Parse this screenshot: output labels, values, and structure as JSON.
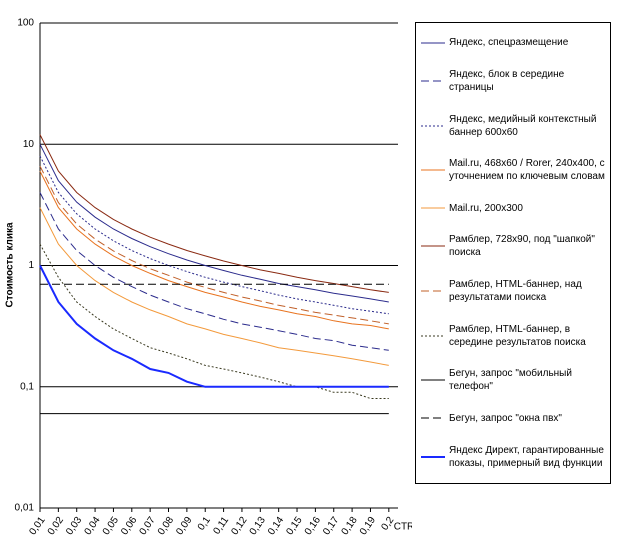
{
  "chart_data": {
    "type": "line",
    "y_label": "Стоимость клика",
    "x_label": "CTR",
    "log_y": true,
    "grid": true,
    "x": [
      0.01,
      0.02,
      0.03,
      0.04,
      0.05,
      0.06,
      0.07,
      0.08,
      0.09,
      0.1,
      0.11,
      0.12,
      0.13,
      0.14,
      0.15,
      0.16,
      0.17,
      0.18,
      0.19,
      0.2
    ],
    "xlim": [
      0.01,
      0.205
    ],
    "xticks": [
      {
        "value": 0.01,
        "label": "0,01"
      },
      {
        "value": 0.02,
        "label": "0,02"
      },
      {
        "value": 0.03,
        "label": "0,03"
      },
      {
        "value": 0.04,
        "label": "0,04"
      },
      {
        "value": 0.05,
        "label": "0,05"
      },
      {
        "value": 0.06,
        "label": "0,06"
      },
      {
        "value": 0.07,
        "label": "0,07"
      },
      {
        "value": 0.08,
        "label": "0,08"
      },
      {
        "value": 0.09,
        "label": "0,09"
      },
      {
        "value": 0.1,
        "label": "0,1"
      },
      {
        "value": 0.11,
        "label": "0,11"
      },
      {
        "value": 0.12,
        "label": "0,12"
      },
      {
        "value": 0.13,
        "label": "0,13"
      },
      {
        "value": 0.14,
        "label": "0,14"
      },
      {
        "value": 0.15,
        "label": "0,15"
      },
      {
        "value": 0.16,
        "label": "0,16"
      },
      {
        "value": 0.17,
        "label": "0,17"
      },
      {
        "value": 0.18,
        "label": "0,18"
      },
      {
        "value": 0.19,
        "label": "0,19"
      },
      {
        "value": 0.2,
        "label": "0,2"
      }
    ],
    "ylim": [
      0.01,
      100
    ],
    "yticks": [
      {
        "value": 0.01,
        "label": "0,01"
      },
      {
        "value": 0.1,
        "label": "0,1"
      },
      1,
      10,
      100
    ],
    "series": [
      {
        "name": "Яндекс, спецразмещение",
        "color": "#2b2b8c",
        "dash": "solid",
        "values": [
          10,
          5,
          3.33,
          2.5,
          2,
          1.67,
          1.43,
          1.25,
          1.11,
          1,
          0.91,
          0.83,
          0.77,
          0.71,
          0.67,
          0.63,
          0.59,
          0.56,
          0.53,
          0.5
        ]
      },
      {
        "name": "Яндекс, блок в середине страницы",
        "color": "#2b2b8c",
        "dash": "dash",
        "values": [
          4,
          2,
          1.33,
          1,
          0.8,
          0.67,
          0.57,
          0.5,
          0.44,
          0.4,
          0.36,
          0.33,
          0.31,
          0.29,
          0.27,
          0.25,
          0.24,
          0.22,
          0.21,
          0.2
        ]
      },
      {
        "name": "Яндекс, медийный контекстный баннер 600x60",
        "color": "#2b2b8c",
        "dash": "dot",
        "values": [
          8,
          4,
          2.67,
          2,
          1.6,
          1.33,
          1.14,
          1,
          0.89,
          0.8,
          0.73,
          0.67,
          0.62,
          0.57,
          0.53,
          0.5,
          0.47,
          0.44,
          0.42,
          0.4
        ]
      },
      {
        "name": "Mail.ru, 468x60 / Rorer, 240x400, с уточнением по ключевым словам",
        "color": "#e8731f",
        "dash": "solid",
        "values": [
          6,
          3,
          2,
          1.5,
          1.2,
          1,
          0.86,
          0.75,
          0.67,
          0.6,
          0.55,
          0.5,
          0.46,
          0.43,
          0.4,
          0.38,
          0.35,
          0.33,
          0.32,
          0.3
        ]
      },
      {
        "name": "Mail.ru, 200x300",
        "color": "#f39a3c",
        "dash": "solid",
        "values": [
          3,
          1.5,
          1,
          0.75,
          0.6,
          0.5,
          0.43,
          0.38,
          0.33,
          0.3,
          0.27,
          0.25,
          0.23,
          0.21,
          0.2,
          0.19,
          0.18,
          0.17,
          0.16,
          0.15
        ]
      },
      {
        "name": "Рамблер, 728x90, под \"шапкой\" поиска",
        "color": "#8a2a12",
        "dash": "solid",
        "values": [
          12,
          6,
          4,
          3,
          2.4,
          2,
          1.71,
          1.5,
          1.33,
          1.2,
          1.09,
          1,
          0.92,
          0.86,
          0.8,
          0.75,
          0.71,
          0.67,
          0.63,
          0.6
        ]
      },
      {
        "name": "Рамблер, HTML-баннер, над результатами поиска",
        "color": "#c0602a",
        "dash": "dash",
        "values": [
          6.6,
          3.3,
          2.2,
          1.65,
          1.32,
          1.1,
          0.94,
          0.83,
          0.73,
          0.66,
          0.6,
          0.55,
          0.51,
          0.47,
          0.44,
          0.41,
          0.39,
          0.37,
          0.35,
          0.33
        ]
      },
      {
        "name": "Рамблер, HTML-баннер, в середине результатов поиска",
        "color": "#3a3a20",
        "dash": "dot",
        "values": [
          1.5,
          0.8,
          0.5,
          0.38,
          0.3,
          0.25,
          0.21,
          0.19,
          0.17,
          0.15,
          0.14,
          0.13,
          0.12,
          0.11,
          0.1,
          0.1,
          0.09,
          0.09,
          0.08,
          0.08
        ]
      },
      {
        "name": "Бегун, запрос \"мобильный телефон\"",
        "color": "#000000",
        "dash": "solid",
        "values": [
          0.06,
          0.06,
          0.06,
          0.06,
          0.06,
          0.06,
          0.06,
          0.06,
          0.06,
          0.06,
          0.06,
          0.06,
          0.06,
          0.06,
          0.06,
          0.06,
          0.06,
          0.06,
          0.06,
          0.06
        ]
      },
      {
        "name": "Бегун, запрос \"окна пвх\"",
        "color": "#000000",
        "dash": "dash",
        "values": [
          0.7,
          0.7,
          0.7,
          0.7,
          0.7,
          0.7,
          0.7,
          0.7,
          0.7,
          0.7,
          0.7,
          0.7,
          0.7,
          0.7,
          0.7,
          0.7,
          0.7,
          0.7,
          0.7,
          0.7
        ]
      },
      {
        "name": "Яндекс Директ, гарантированные показы, примерный вид функции",
        "color": "#1a2aff",
        "dash": "solid",
        "line_width": 2,
        "values": [
          1,
          0.5,
          0.33,
          0.25,
          0.2,
          0.17,
          0.14,
          0.13,
          0.11,
          0.1,
          0.1,
          0.1,
          0.1,
          0.1,
          0.1,
          0.1,
          0.1,
          0.1,
          0.1,
          0.1
        ]
      }
    ]
  }
}
